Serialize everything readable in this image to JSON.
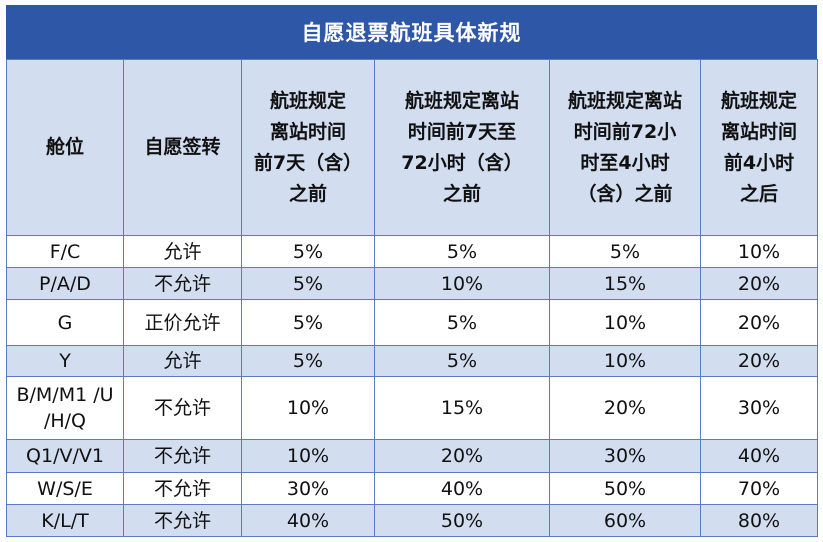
{
  "title": "自愿退票航班具体新规",
  "headers": [
    "舱位",
    "自愿签转",
    "航班规定离站时间前7天（含）之前",
    "航班规定离站时间前7天至72小时（含）之前",
    "航班规定离站时间前72小时至4小时（含）之前",
    "航班规定离站时间前4小时之后"
  ],
  "header_lines": [
    [
      "舱位"
    ],
    [
      "自愿签转"
    ],
    [
      "航班规定",
      "离站时间",
      "前7天（含）",
      "之前"
    ],
    [
      "航班规定离站",
      "时间前7天至",
      "72小时（含）",
      "之前"
    ],
    [
      "航班规定离站",
      "时间前72小",
      "时至4小时",
      "（含）之前"
    ],
    [
      "航班规定",
      "离站时间",
      "前4小时",
      "之后"
    ]
  ],
  "rows": [
    [
      "F/C",
      "允许",
      "5%",
      "5%",
      "5%",
      "10%"
    ],
    [
      "P/A/D",
      "不允许",
      "5%",
      "10%",
      "15%",
      "20%"
    ],
    [
      "G",
      "正价允许",
      "5%",
      "5%",
      "10%",
      "20%"
    ],
    [
      "Y",
      "允许",
      "5%",
      "5%",
      "10%",
      "20%"
    ],
    [
      "B/M/M1 /U /H/Q",
      "不允许",
      "10%",
      "15%",
      "20%",
      "30%"
    ],
    [
      "Q1/V/V1",
      "不允许",
      "10%",
      "20%",
      "30%",
      "40%"
    ],
    [
      "W/S/E",
      "不允许",
      "30%",
      "40%",
      "50%",
      "70%"
    ],
    [
      "K/L/T",
      "不允许",
      "40%",
      "50%",
      "60%",
      "80%"
    ]
  ],
  "colors": {
    "title_bg": "#2f57a7",
    "header_bg": "#d3ddf0",
    "stripe_bg": "#d3ddf0",
    "border": "#5b7ac4"
  }
}
